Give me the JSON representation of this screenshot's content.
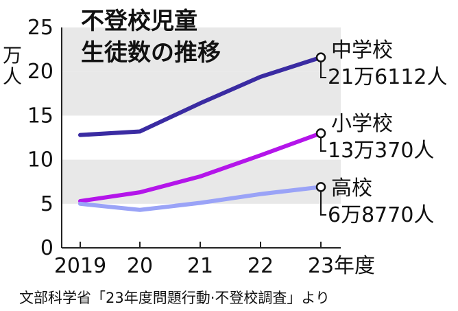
{
  "chart_data": {
    "type": "line",
    "title_lines": [
      "不登校児童",
      "生徒数の推移"
    ],
    "y_unit_label": [
      "万",
      "人"
    ],
    "x_labels": [
      "2019",
      "20",
      "21",
      "22",
      "23"
    ],
    "x_unit": "年度",
    "y_ticks": [
      "0",
      "5",
      "10",
      "15",
      "20",
      "25"
    ],
    "ylim": [
      0,
      25
    ],
    "grid": "alternating bands",
    "series": [
      {
        "name": "中学校",
        "value_label": "21万6112人",
        "color": "#3a2ba2",
        "values": [
          12.8,
          13.2,
          16.4,
          19.4,
          21.6
        ]
      },
      {
        "name": "小学校",
        "value_label": "13万370人",
        "color": "#b415ea",
        "values": [
          5.3,
          6.3,
          8.1,
          10.5,
          13.0
        ]
      },
      {
        "name": "高校",
        "value_label": "6万8770人",
        "color": "#9aa3f7",
        "values": [
          5.0,
          4.3,
          5.1,
          6.1,
          6.9
        ]
      }
    ],
    "source": "文部科学省「23年度問題行動·不登校調査」より"
  }
}
